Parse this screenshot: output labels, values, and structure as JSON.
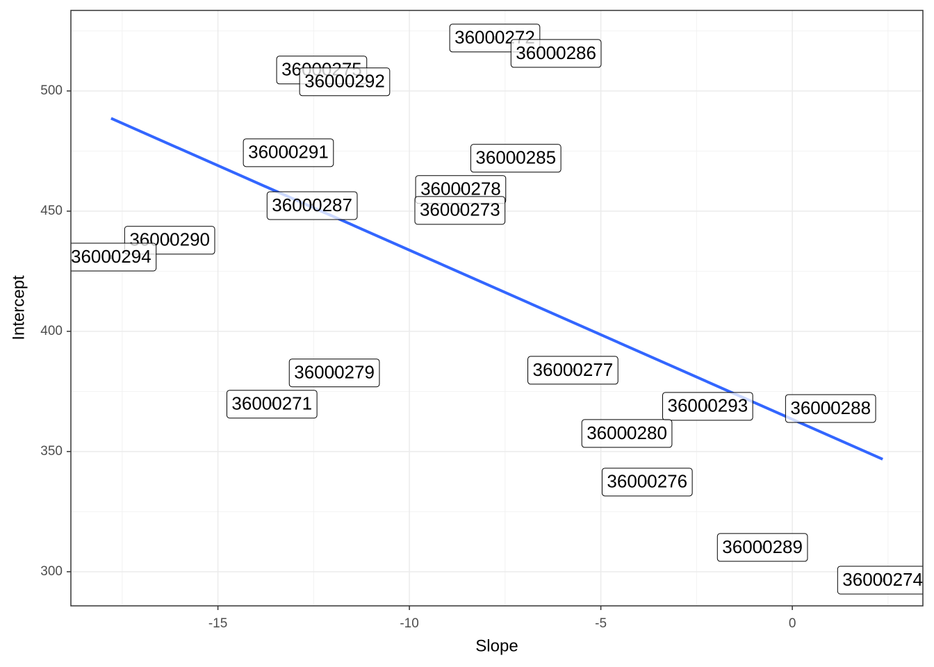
{
  "chart_data": {
    "type": "scatter",
    "x_label": "Slope",
    "y_label": "Intercept",
    "xlim": [
      -18.84,
      3.41
    ],
    "ylim": [
      285.8,
      533.5
    ],
    "xticks": [
      -15,
      -10,
      -5,
      0
    ],
    "yticks": [
      300,
      350,
      400,
      450,
      500
    ],
    "grid": true,
    "series": [
      {
        "color": "#000000",
        "labels": [
          "36000272",
          "36000286",
          "36000275",
          "36000292",
          "36000291",
          "36000285",
          "36000278",
          "36000287",
          "36000273",
          "36000290",
          "36000294",
          "36000279",
          "36000271",
          "36000277",
          "36000293",
          "36000288",
          "36000280",
          "36000276",
          "36000289",
          "36000274"
        ],
        "x": [
          -7.77,
          -6.17,
          -12.29,
          -11.69,
          -13.16,
          -7.22,
          -8.66,
          -12.54,
          -8.68,
          -16.26,
          -17.79,
          -11.96,
          -13.59,
          -5.73,
          -2.21,
          1.0,
          -4.32,
          -3.79,
          -0.78,
          2.36
        ],
        "values": [
          522.0,
          515.6,
          508.7,
          503.8,
          474.3,
          472.0,
          459.0,
          452.3,
          450.3,
          437.9,
          430.9,
          382.7,
          369.7,
          383.8,
          368.8,
          367.9,
          357.5,
          337.3,
          310.1,
          296.5
        ]
      },
      {
        "type": "line",
        "color": "#3366ff",
        "x": [
          -17.79,
          2.36
        ],
        "values": [
          488.6,
          346.8
        ]
      }
    ]
  }
}
